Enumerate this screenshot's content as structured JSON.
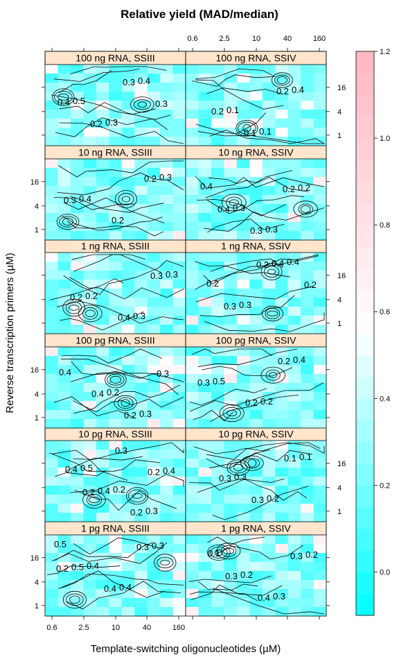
{
  "chart_data": {
    "type": "heatmap",
    "title": "Relative yield (MAD/median)",
    "xlabel": "Template-switching oligonucleotides (µM)",
    "ylabel": "Reverse transcription primers (µM)",
    "x_tick_labels": [
      "0.6",
      "2.5",
      "10",
      "40",
      "160"
    ],
    "y_tick_labels": [
      "1",
      "4",
      "16"
    ],
    "colorbar": {
      "ticks": [
        0.0,
        0.2,
        0.4,
        0.6,
        0.8,
        1.0,
        1.2
      ],
      "tick_labels": [
        "0.0",
        "0.2",
        "0.4",
        "0.6",
        "0.8",
        "1.0",
        "1.2"
      ],
      "range": [
        -0.1,
        1.2
      ],
      "low_color": "#00ffff",
      "mid_color": "#ffffff",
      "high_color": "#ffb6c1"
    },
    "panels": [
      {
        "label": "1 pg RNA, SSIII",
        "contour_labels": [
          "0.5",
          "0.4",
          "0.4",
          "0.3",
          "0.5",
          "0.4",
          "0.3",
          "0.2"
        ]
      },
      {
        "label": "1 pg RNA, SSIV",
        "contour_labels": [
          "0.1",
          "0.2",
          "0.3",
          "0.2",
          "0.3",
          "0.4",
          "0.3"
        ]
      },
      {
        "label": "10 pg RNA, SSIII",
        "contour_labels": [
          "0.5",
          "0.2",
          "0.3",
          "0.4",
          "0.4",
          "0.2",
          "0.4",
          "0.2",
          "0.3",
          "0.2"
        ]
      },
      {
        "label": "10 pg RNA, SSIV",
        "contour_labels": [
          "0.3",
          "0.2",
          "0.1",
          "0.3",
          "0.3",
          "0.1"
        ]
      },
      {
        "label": "100 pg RNA, SSIII",
        "contour_labels": [
          "0.2",
          "0.3",
          "0.4",
          "0.4",
          "0.2",
          "0.3"
        ]
      },
      {
        "label": "100 pg RNA, SSIV",
        "contour_labels": [
          "0.2",
          "0.4",
          "0.5",
          "0.2",
          "0.2",
          "0.3"
        ]
      },
      {
        "label": "1 ng RNA, SSIII",
        "contour_labels": [
          "0.3",
          "0.3",
          "0.2",
          "0.4",
          "0.3",
          "0.2"
        ]
      },
      {
        "label": "1 ng RNA, SSIV",
        "contour_labels": [
          "0.4",
          "0.2",
          "0.3",
          "0.4",
          "0.2",
          "0.3",
          "0.2"
        ]
      },
      {
        "label": "10 ng RNA, SSIII",
        "contour_labels": [
          "0.3",
          "0.4",
          "0.2",
          "0.2",
          "0.3"
        ]
      },
      {
        "label": "10 ng RNA, SSIV",
        "contour_labels": [
          "0.4",
          "0.3",
          "0.3",
          "0.2",
          "0.4",
          "0.3",
          "0.2"
        ]
      },
      {
        "label": "100 ng RNA, SSIII",
        "contour_labels": [
          "0.5",
          "0.3",
          "0.4",
          "0.4",
          "0.2",
          "0.3",
          "0.3"
        ]
      },
      {
        "label": "100 ng RNA, SSIV",
        "contour_labels": [
          "0.1",
          "0.1",
          "0.4",
          "0.2",
          "0.1",
          "0.2"
        ]
      }
    ]
  }
}
